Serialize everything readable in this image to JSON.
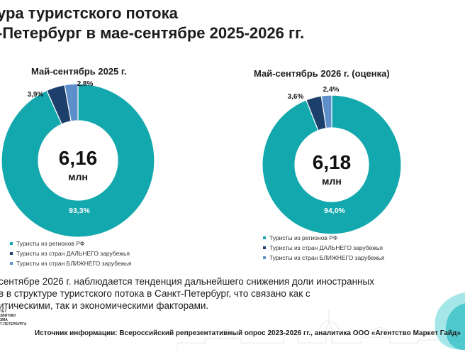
{
  "title": {
    "line1": "ура туристского потока",
    "line2": "-Петербург в мае-сентябре 2025-2026 гг."
  },
  "chart_data": [
    {
      "type": "pie",
      "title": "Май-сентябрь 2025 г.",
      "center_value": "6,16",
      "center_unit": "млн",
      "labels": [
        "Туристы из регионов РФ",
        "Туристы из стран ДАЛЬНЕГО зарубежья",
        "Туристы из стран БЛИЖНЕГО зарубежья"
      ],
      "values": [
        93.3,
        3.9,
        2.8
      ],
      "value_labels": [
        "93,3%",
        "3,9%",
        "2,8%"
      ],
      "colors": [
        "#12a8ad",
        "#1d3f6b",
        "#5d8fcb"
      ],
      "legend": "bottom"
    },
    {
      "type": "pie",
      "title": "Май-сентябрь 2026 г. (оценка)",
      "center_value": "6,18",
      "center_unit": "млн",
      "labels": [
        "Туристы из регионов РФ",
        "Туристы из стран  ДАЛЬНЕГО зарубежья",
        "Туристы из стран БЛИЖНЕГО зарубежья"
      ],
      "values": [
        94.0,
        3.6,
        2.4
      ],
      "value_labels": [
        "94,0%",
        "3,6%",
        "2,4%"
      ],
      "colors": [
        "#12a8ad",
        "#1d3f6b",
        "#5d8fcb"
      ],
      "legend": "bottom"
    }
  ],
  "note": {
    "line1": "сентябре 2026 г. наблюдается тенденция дальнейшего снижения доли иностранных",
    "line2": "в в структуре туристского потока в Санкт-Петербург, что связано как с",
    "line3": "итическими, так и экономическими факторами."
  },
  "logo": {
    "line1": "ТЕТ",
    "line2": "ЗВИТИЮ",
    "line3": "ЗМА",
    "line4": "Т-ПЕТЕРБУРГА"
  },
  "source": "Источник информации: Всероссийский репрезентативный опрос 2023-2026 гг., аналитика ООО «Агентство Маркет Гайд»"
}
